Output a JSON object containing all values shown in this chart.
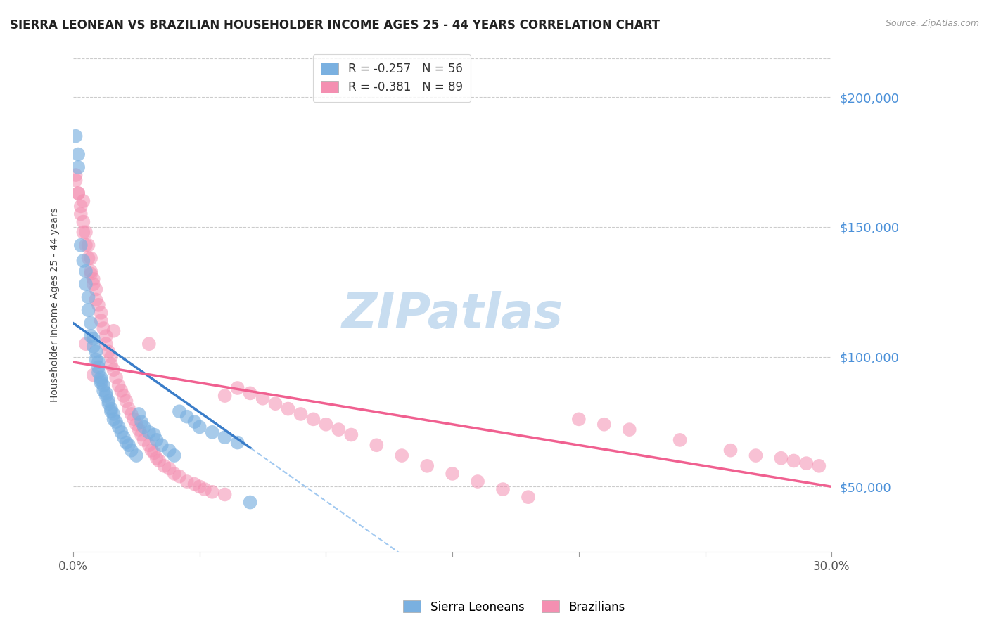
{
  "title": "SIERRA LEONEAN VS BRAZILIAN HOUSEHOLDER INCOME AGES 25 - 44 YEARS CORRELATION CHART",
  "source": "Source: ZipAtlas.com",
  "ylabel": "Householder Income Ages 25 - 44 years",
  "xlim": [
    0.0,
    0.3
  ],
  "ylim": [
    25000,
    215000
  ],
  "yticks": [
    50000,
    100000,
    150000,
    200000
  ],
  "ytick_labels": [
    "$50,000",
    "$100,000",
    "$150,000",
    "$200,000"
  ],
  "xticks": [
    0.0,
    0.05,
    0.1,
    0.15,
    0.2,
    0.25,
    0.3
  ],
  "xtick_labels": [
    "0.0%",
    "",
    "",
    "",
    "",
    "",
    "30.0%"
  ],
  "sierra_color": "#7ab0e0",
  "brazil_color": "#f48fb1",
  "sierra_line_color": "#3a7dc9",
  "brazil_line_color": "#f06090",
  "dashed_line_color": "#a0c8f0",
  "watermark": "ZIPatlas",
  "watermark_color": "#c8ddf0",
  "legend_r1": "R = -0.257   N = 56",
  "legend_r2": "R = -0.381   N = 89",
  "legend_c1": "#7ab0e0",
  "legend_c2": "#f48fb1",
  "sierra_line_x0": 0.0,
  "sierra_line_y0": 113000,
  "sierra_line_x1": 0.07,
  "sierra_line_y1": 65000,
  "brazil_line_x0": 0.0,
  "brazil_line_y0": 98000,
  "brazil_line_x1": 0.3,
  "brazil_line_y1": 50000,
  "sierra_x": [
    0.001,
    0.002,
    0.002,
    0.003,
    0.004,
    0.005,
    0.005,
    0.006,
    0.006,
    0.007,
    0.007,
    0.008,
    0.008,
    0.009,
    0.009,
    0.01,
    0.01,
    0.01,
    0.011,
    0.011,
    0.011,
    0.012,
    0.012,
    0.013,
    0.013,
    0.014,
    0.014,
    0.015,
    0.015,
    0.016,
    0.016,
    0.017,
    0.018,
    0.019,
    0.02,
    0.021,
    0.022,
    0.023,
    0.025,
    0.026,
    0.027,
    0.028,
    0.03,
    0.032,
    0.033,
    0.035,
    0.038,
    0.04,
    0.042,
    0.045,
    0.048,
    0.05,
    0.055,
    0.06,
    0.065,
    0.07
  ],
  "sierra_y": [
    185000,
    178000,
    173000,
    143000,
    137000,
    133000,
    128000,
    123000,
    118000,
    113000,
    108000,
    107000,
    104000,
    102000,
    99000,
    98000,
    96000,
    94000,
    92000,
    91000,
    90000,
    89000,
    87000,
    86000,
    85000,
    83000,
    82000,
    80000,
    79000,
    78000,
    76000,
    75000,
    73000,
    71000,
    69000,
    67000,
    66000,
    64000,
    62000,
    78000,
    75000,
    73000,
    71000,
    70000,
    68000,
    66000,
    64000,
    62000,
    79000,
    77000,
    75000,
    73000,
    71000,
    69000,
    67000,
    44000
  ],
  "brazil_x": [
    0.001,
    0.002,
    0.003,
    0.004,
    0.005,
    0.006,
    0.007,
    0.007,
    0.008,
    0.009,
    0.009,
    0.01,
    0.011,
    0.011,
    0.012,
    0.013,
    0.013,
    0.014,
    0.015,
    0.015,
    0.016,
    0.017,
    0.018,
    0.019,
    0.02,
    0.021,
    0.022,
    0.023,
    0.024,
    0.025,
    0.026,
    0.027,
    0.028,
    0.03,
    0.031,
    0.032,
    0.033,
    0.034,
    0.036,
    0.038,
    0.04,
    0.042,
    0.045,
    0.048,
    0.05,
    0.052,
    0.055,
    0.06,
    0.065,
    0.07,
    0.075,
    0.08,
    0.085,
    0.09,
    0.095,
    0.1,
    0.105,
    0.11,
    0.12,
    0.13,
    0.14,
    0.15,
    0.16,
    0.17,
    0.18,
    0.2,
    0.21,
    0.22,
    0.24,
    0.26,
    0.27,
    0.28,
    0.285,
    0.29,
    0.295,
    0.005,
    0.008,
    0.016,
    0.03,
    0.06,
    0.001,
    0.002,
    0.003,
    0.004,
    0.004,
    0.005,
    0.006,
    0.007,
    0.008
  ],
  "brazil_y": [
    170000,
    163000,
    158000,
    152000,
    148000,
    143000,
    138000,
    133000,
    130000,
    126000,
    122000,
    120000,
    117000,
    114000,
    111000,
    108000,
    105000,
    102000,
    100000,
    97000,
    95000,
    92000,
    89000,
    87000,
    85000,
    83000,
    80000,
    78000,
    76000,
    74000,
    72000,
    70000,
    68000,
    66000,
    64000,
    63000,
    61000,
    60000,
    58000,
    57000,
    55000,
    54000,
    52000,
    51000,
    50000,
    49000,
    48000,
    47000,
    88000,
    86000,
    84000,
    82000,
    80000,
    78000,
    76000,
    74000,
    72000,
    70000,
    66000,
    62000,
    58000,
    55000,
    52000,
    49000,
    46000,
    76000,
    74000,
    72000,
    68000,
    64000,
    62000,
    61000,
    60000,
    59000,
    58000,
    105000,
    93000,
    110000,
    105000,
    85000,
    168000,
    163000,
    155000,
    148000,
    160000,
    143000,
    138000,
    132000,
    128000
  ]
}
